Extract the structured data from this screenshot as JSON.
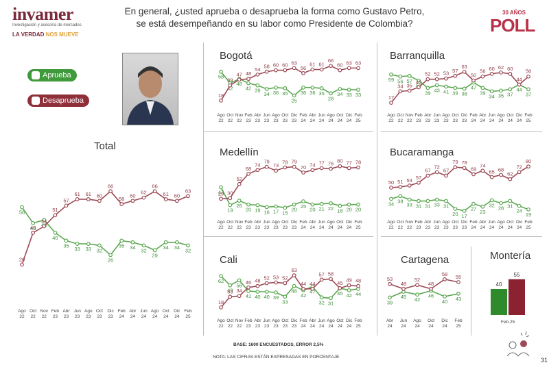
{
  "brand": {
    "name": "invamer",
    "subtitle": "Investigación y asesoría de mercados",
    "tagline_1": "LA VERDAD",
    "tagline_2": "NOS MUEVE"
  },
  "question": "En general, ¿usted aprueba o desaprueba la forma como Gustavo Petro, se está desempeñando en su labor como Presidente de Colombia?",
  "anniversary": {
    "top": "30 AÑOS",
    "main": "POLL"
  },
  "legend": {
    "approve": "Aprueba",
    "disapprove": "Desaprueba"
  },
  "colors": {
    "approve": "#5aa84f",
    "disapprove": "#9c4a55"
  },
  "footer": {
    "base": "BASE: 1600 ENCUESTADOS, ERROR 2,5%",
    "note": "NOTA: LAS CIFRAS ESTÁN EXPRESADAS EN PORCENTAJE",
    "page": "31"
  },
  "chart_data": [
    {
      "type": "line",
      "title": "Total",
      "x": [
        "Ago 22",
        "Oct 22",
        "Nov 22",
        "Feb 23",
        "Abr 23",
        "Jun 23",
        "Ago 23",
        "Oct 23",
        "Dic 23",
        "Feb 24",
        "Abr 24",
        "Jun 24",
        "Ago 24",
        "Oct 24",
        "Dic 24",
        "Feb 25"
      ],
      "series": [
        {
          "name": "Aprueba",
          "values": [
            56,
            46,
            48,
            40,
            35,
            33,
            33,
            32,
            26,
            35,
            34,
            32,
            29,
            34,
            34,
            32
          ]
        },
        {
          "name": "Desaprueba",
          "values": [
            20,
            40,
            44,
            51,
            57,
            61,
            61,
            60,
            66,
            58,
            60,
            62,
            66,
            61,
            60,
            63
          ]
        }
      ]
    },
    {
      "type": "line",
      "title": "Bogotá",
      "x": [
        "Ago 22",
        "Oct 22",
        "Nov 22",
        "Feb 23",
        "Abr 23",
        "Jun 23",
        "Ago 23",
        "Oct 23",
        "Dic 23",
        "Feb 24",
        "Abr 24",
        "Jun 24",
        "Ago 24",
        "Oct 24",
        "Dic 24",
        "Feb 25"
      ],
      "series": [
        {
          "name": "Aprueba",
          "values": [
            58,
            42,
            48,
            42,
            39,
            34,
            36,
            35,
            25,
            36,
            36,
            35,
            28,
            34,
            33,
            33
          ]
        },
        {
          "name": "Desaprueba",
          "values": [
            18,
            39,
            47,
            48,
            54,
            58,
            60,
            60,
            63,
            56,
            61,
            61,
            66,
            60,
            63,
            63
          ]
        }
      ]
    },
    {
      "type": "line",
      "title": "Barranquilla",
      "x": [
        "Ago 22",
        "Oct 22",
        "Nov 22",
        "Feb 23",
        "Abr 23",
        "Jun 23",
        "Ago 23",
        "Oct 23",
        "Dic 23",
        "Feb 24",
        "Abr 24",
        "Jun 24",
        "Ago 24",
        "Oct 24",
        "Dic 24",
        "Feb 25"
      ],
      "series": [
        {
          "name": "Aprueba",
          "values": [
            59,
            56,
            57,
            50,
            39,
            43,
            41,
            39,
            38,
            47,
            39,
            34,
            35,
            37,
            44,
            37
          ]
        },
        {
          "name": "Desaprueba",
          "values": [
            17,
            34,
            35,
            40,
            52,
            52,
            53,
            57,
            63,
            50,
            56,
            60,
            62,
            60,
            44,
            56
          ]
        }
      ]
    },
    {
      "type": "line",
      "title": "Medellín",
      "x": [
        "Ago 22",
        "Oct 22",
        "Nov 22",
        "Feb 23",
        "Abr 23",
        "Jun 23",
        "Ago 23",
        "Oct 23",
        "Dic 23",
        "Feb 24",
        "Abr 24",
        "Jun 24",
        "Ago 24",
        "Oct 24",
        "Dic 24",
        "Feb 25"
      ],
      "series": [
        {
          "name": "Aprueba",
          "values": [
            47,
            19,
            26,
            20,
            19,
            16,
            17,
            15,
            20,
            25,
            20,
            21,
            22,
            18,
            20,
            20
          ]
        },
        {
          "name": "Desaprueba",
          "values": [
            29,
            30,
            52,
            68,
            74,
            79,
            73,
            78,
            79,
            70,
            74,
            77,
            76,
            80,
            77,
            78
          ]
        }
      ]
    },
    {
      "type": "line",
      "title": "Bucaramanga",
      "x": [
        "Ago 22",
        "Oct 22",
        "Nov 22",
        "Feb 23",
        "Abr 23",
        "Jun 23",
        "Ago 23",
        "Oct 23",
        "Dic 23",
        "Feb 24",
        "Abr 24",
        "Jun 24",
        "Ago 24",
        "Oct 24",
        "Dic 24",
        "Feb 25"
      ],
      "series": [
        {
          "name": "Aprueba",
          "values": [
            34,
            38,
            33,
            31,
            31,
            33,
            31,
            20,
            17,
            27,
            23,
            32,
            28,
            31,
            24,
            19
          ]
        },
        {
          "name": "Desaprueba",
          "values": [
            50,
            51,
            53,
            57,
            67,
            72,
            67,
            79,
            78,
            69,
            74,
            65,
            68,
            62,
            72,
            80
          ]
        }
      ]
    },
    {
      "type": "line",
      "title": "Cali",
      "x": [
        "Ago 22",
        "Oct 22",
        "Nov 22",
        "Feb 23",
        "Abr 23",
        "Jun 23",
        "Ago 23",
        "Oct 23",
        "Dic 23",
        "Feb 24",
        "Abr 24",
        "Jun 24",
        "Ago 24",
        "Oct 24",
        "Dic 24",
        "Feb 25"
      ],
      "series": [
        {
          "name": "Aprueba",
          "values": [
            62,
            49,
            56,
            41,
            40,
            40,
            39,
            33,
            48,
            42,
            47,
            32,
            31,
            45,
            42,
            44
          ]
        },
        {
          "name": "Desaprueba",
          "values": [
            18,
            33,
            34,
            46,
            48,
            52,
            53,
            52,
            63,
            44,
            44,
            57,
            58,
            45,
            49,
            48
          ]
        }
      ]
    },
    {
      "type": "line",
      "title": "Cartagena",
      "x": [
        "Abr 24",
        "Jun 24",
        "Ago 24",
        "Oct 24",
        "Dic 24",
        "Feb 25"
      ],
      "series": [
        {
          "name": "Aprueba",
          "values": [
            39,
            45,
            42,
            46,
            40,
            43
          ]
        },
        {
          "name": "Desaprueba",
          "values": [
            53,
            48,
            52,
            48,
            58,
            55
          ]
        }
      ]
    },
    {
      "type": "bar",
      "title": "Montería",
      "categories": [
        "Feb.25"
      ],
      "series": [
        {
          "name": "Aprueba",
          "values": [
            40
          ]
        },
        {
          "name": "Desaprueba",
          "values": [
            55
          ]
        }
      ]
    }
  ]
}
